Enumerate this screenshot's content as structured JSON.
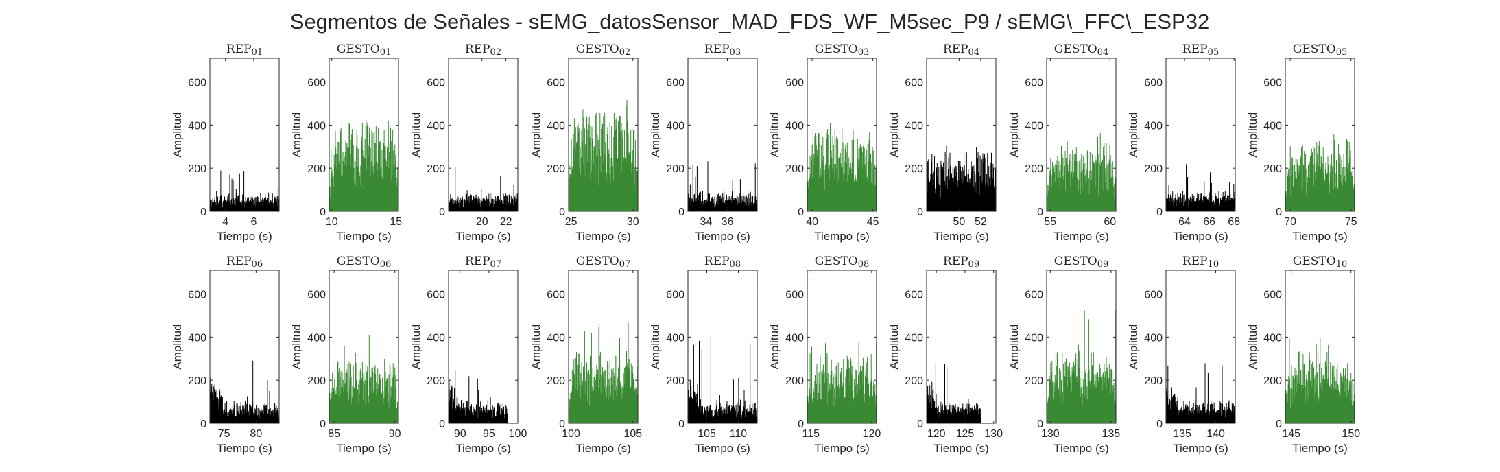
{
  "figure": {
    "title": "Segmentos de Señales - sEMG_datosSensor_MAD_FDS_WF_M5sec_P9 / sEMG\\_FFC\\_ESP32",
    "colors": {
      "rep": "#000000",
      "gesto": "#3a8a33",
      "axis": "#262626"
    }
  },
  "chart_data": [
    {
      "type": "bar",
      "title": "REP_01",
      "xlabel": "Tiempo (s)",
      "ylabel": "Amplitud",
      "xlim": [
        2.9,
        7.8
      ],
      "ylim": [
        0,
        710
      ],
      "xticks": [
        4,
        6
      ],
      "yticks": [
        0,
        200,
        400,
        600
      ],
      "series_kind": "rep",
      "baseline": 38,
      "noise": 40,
      "spike": 190,
      "grid": false
    },
    {
      "type": "bar",
      "title": "GESTO_01",
      "xlabel": "Tiempo (s)",
      "ylabel": "Amplitud",
      "xlim": [
        9.8,
        15.2
      ],
      "ylim": [
        0,
        710
      ],
      "xticks": [
        10,
        15
      ],
      "yticks": [
        0,
        200,
        400,
        600
      ],
      "series_kind": "gesto",
      "baseline": 260,
      "noise": 120,
      "spike": 480,
      "grid": false
    },
    {
      "type": "bar",
      "title": "REP_02",
      "xlabel": "Tiempo (s)",
      "ylabel": "Amplitud",
      "xlim": [
        17.2,
        23.0
      ],
      "ylim": [
        0,
        710
      ],
      "xticks": [
        20,
        22
      ],
      "yticks": [
        0,
        200,
        400,
        600
      ],
      "series_kind": "rep",
      "baseline": 40,
      "noise": 40,
      "spike": 210,
      "grid": false
    },
    {
      "type": "bar",
      "title": "GESTO_02",
      "xlabel": "Tiempo (s)",
      "ylabel": "Amplitud",
      "xlim": [
        24.8,
        30.4
      ],
      "ylim": [
        0,
        710
      ],
      "xticks": [
        25,
        30
      ],
      "yticks": [
        0,
        200,
        400,
        600
      ],
      "series_kind": "gesto",
      "baseline": 300,
      "noise": 130,
      "spike": 540,
      "grid": false
    },
    {
      "type": "bar",
      "title": "REP_03",
      "xlabel": "Tiempo (s)",
      "ylabel": "Amplitud",
      "xlim": [
        32.3,
        38.8
      ],
      "ylim": [
        0,
        710
      ],
      "xticks": [
        34,
        36
      ],
      "yticks": [
        0,
        200,
        400,
        600
      ],
      "series_kind": "rep",
      "baseline": 45,
      "noise": 45,
      "spike": 240,
      "grid": false
    },
    {
      "type": "bar",
      "title": "GESTO_03",
      "xlabel": "Tiempo (s)",
      "ylabel": "Amplitud",
      "xlim": [
        39.6,
        45.3
      ],
      "ylim": [
        0,
        710
      ],
      "xticks": [
        40,
        45
      ],
      "yticks": [
        0,
        200,
        400,
        600
      ],
      "series_kind": "gesto",
      "baseline": 230,
      "noise": 120,
      "spike": 450,
      "grid": false
    },
    {
      "type": "bar",
      "title": "REP_04",
      "xlabel": "Tiempo (s)",
      "ylabel": "Amplitud",
      "xlim": [
        47.0,
        53.4
      ],
      "ylim": [
        0,
        710
      ],
      "xticks": [
        50,
        52
      ],
      "yticks": [
        0,
        200,
        400,
        600
      ],
      "series_kind": "rep",
      "baseline": 170,
      "noise": 80,
      "spike": 310,
      "grid": false
    },
    {
      "type": "bar",
      "title": "GESTO_04",
      "xlabel": "Tiempo (s)",
      "ylabel": "Amplitud",
      "xlim": [
        54.7,
        60.5
      ],
      "ylim": [
        0,
        710
      ],
      "xticks": [
        55,
        60
      ],
      "yticks": [
        0,
        200,
        400,
        600
      ],
      "series_kind": "gesto",
      "baseline": 180,
      "noise": 100,
      "spike": 380,
      "grid": false
    },
    {
      "type": "bar",
      "title": "REP_05",
      "xlabel": "Tiempo (s)",
      "ylabel": "Amplitud",
      "xlim": [
        62.5,
        68.1
      ],
      "ylim": [
        0,
        710
      ],
      "xticks": [
        64,
        66,
        68
      ],
      "yticks": [
        0,
        200,
        400,
        600
      ],
      "series_kind": "rep",
      "baseline": 45,
      "noise": 45,
      "spike": 220,
      "grid": false
    },
    {
      "type": "bar",
      "title": "GESTO_05",
      "xlabel": "Tiempo (s)",
      "ylabel": "Amplitud",
      "xlim": [
        69.6,
        75.3
      ],
      "ylim": [
        0,
        710
      ],
      "xticks": [
        70,
        75
      ],
      "yticks": [
        0,
        200,
        400,
        600
      ],
      "series_kind": "gesto",
      "baseline": 200,
      "noise": 100,
      "spike": 380,
      "grid": false
    },
    {
      "type": "bar",
      "title": "REP_06",
      "xlabel": "Tiempo (s)",
      "ylabel": "Amplitud",
      "xlim": [
        72.8,
        83.6
      ],
      "ylim": [
        0,
        710
      ],
      "xticks": [
        75,
        80
      ],
      "yticks": [
        0,
        200,
        400,
        600
      ],
      "series_kind": "rep",
      "baseline": 50,
      "noise": 50,
      "spike": 310,
      "grid": false
    },
    {
      "type": "bar",
      "title": "GESTO_06",
      "xlabel": "Tiempo (s)",
      "ylabel": "Amplitud",
      "xlim": [
        84.6,
        90.3
      ],
      "ylim": [
        0,
        710
      ],
      "xticks": [
        85,
        90
      ],
      "yticks": [
        0,
        200,
        400,
        600
      ],
      "series_kind": "gesto",
      "baseline": 180,
      "noise": 90,
      "spike": 410,
      "grid": false
    },
    {
      "type": "bar",
      "title": "REP_07",
      "xlabel": "Tiempo (s)",
      "ylabel": "Amplitud",
      "xlim": [
        88.0,
        100.0
      ],
      "ylim": [
        0,
        710
      ],
      "xticks": [
        90,
        95,
        100
      ],
      "yticks": [
        0,
        200,
        400,
        600
      ],
      "series_kind": "rep",
      "baseline": 50,
      "noise": 50,
      "spike": 290,
      "grid": false,
      "data_end": 98.2
    },
    {
      "type": "bar",
      "title": "GESTO_07",
      "xlabel": "Tiempo (s)",
      "ylabel": "Amplitud",
      "xlim": [
        99.8,
        105.4
      ],
      "ylim": [
        0,
        710
      ],
      "xticks": [
        100,
        105
      ],
      "yticks": [
        0,
        200,
        400,
        600
      ],
      "series_kind": "gesto",
      "baseline": 200,
      "noise": 110,
      "spike": 530,
      "grid": false
    },
    {
      "type": "bar",
      "title": "REP_08",
      "xlabel": "Tiempo (s)",
      "ylabel": "Amplitud",
      "xlim": [
        102.0,
        113.0
      ],
      "ylim": [
        0,
        710
      ],
      "xticks": [
        105,
        110
      ],
      "yticks": [
        0,
        200,
        400,
        600
      ],
      "series_kind": "rep",
      "baseline": 50,
      "noise": 50,
      "spike": 415,
      "grid": false
    },
    {
      "type": "bar",
      "title": "GESTO_08",
      "xlabel": "Tiempo (s)",
      "ylabel": "Amplitud",
      "xlim": [
        114.7,
        120.4
      ],
      "ylim": [
        0,
        710
      ],
      "xticks": [
        115,
        120
      ],
      "yticks": [
        0,
        200,
        400,
        600
      ],
      "series_kind": "gesto",
      "baseline": 190,
      "noise": 100,
      "spike": 400,
      "grid": false
    },
    {
      "type": "bar",
      "title": "REP_09",
      "xlabel": "Tiempo (s)",
      "ylabel": "Amplitud",
      "xlim": [
        118.3,
        130.4
      ],
      "ylim": [
        0,
        710
      ],
      "xticks": [
        120,
        125,
        130
      ],
      "yticks": [
        0,
        200,
        400,
        600
      ],
      "series_kind": "rep",
      "baseline": 50,
      "noise": 45,
      "spike": 320,
      "grid": false,
      "data_end": 127.8
    },
    {
      "type": "bar",
      "title": "GESTO_09",
      "xlabel": "Tiempo (s)",
      "ylabel": "Amplitud",
      "xlim": [
        129.7,
        135.4
      ],
      "ylim": [
        0,
        710
      ],
      "xticks": [
        130,
        135
      ],
      "yticks": [
        0,
        200,
        400,
        600
      ],
      "series_kind": "gesto",
      "baseline": 200,
      "noise": 120,
      "spike": 555,
      "grid": false
    },
    {
      "type": "bar",
      "title": "REP_10",
      "xlabel": "Tiempo (s)",
      "ylabel": "Amplitud",
      "xlim": [
        132.6,
        142.9
      ],
      "ylim": [
        0,
        710
      ],
      "xticks": [
        135,
        140
      ],
      "yticks": [
        0,
        200,
        400,
        600
      ],
      "series_kind": "rep",
      "baseline": 50,
      "noise": 50,
      "spike": 360,
      "grid": false
    },
    {
      "type": "bar",
      "title": "GESTO_10",
      "xlabel": "Tiempo (s)",
      "ylabel": "Amplitud",
      "xlim": [
        144.5,
        150.3
      ],
      "ylim": [
        0,
        710
      ],
      "xticks": [
        145,
        150
      ],
      "yticks": [
        0,
        200,
        400,
        600
      ],
      "series_kind": "gesto",
      "baseline": 200,
      "noise": 100,
      "spike": 465,
      "grid": false
    }
  ]
}
